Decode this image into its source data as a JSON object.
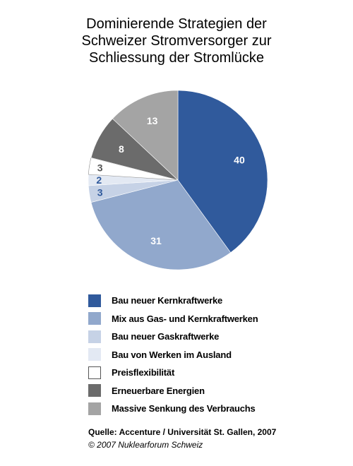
{
  "chart_data": {
    "type": "pie",
    "title_lines": [
      "Dominierende Strategien der",
      "Schweizer Stromversorger zur",
      "Schliessung der Stromlücke"
    ],
    "slices": [
      {
        "label": "Bau neuer Kernkraftwerke",
        "value": 40,
        "color": "#305a9c",
        "label_color": "#ffffff"
      },
      {
        "label": "Mix aus Gas- und Kernkraftwerken",
        "value": 31,
        "color": "#91a8cc",
        "label_color": "#ffffff"
      },
      {
        "label": "Bau neuer Gaskraftwerke",
        "value": 3,
        "color": "#c6d2e6",
        "label_color": "#305a9c"
      },
      {
        "label": "Bau von Werken im Ausland",
        "value": 2,
        "color": "#e3e9f3",
        "label_color": "#305a9c"
      },
      {
        "label": "Preisflexibilität",
        "value": 3,
        "color": "#ffffff",
        "label_color": "#555555"
      },
      {
        "label": "Erneuerbare Energien",
        "value": 8,
        "color": "#6b6b6b",
        "label_color": "#ffffff"
      },
      {
        "label": "Massive Senkung des Verbrauchs",
        "value": 13,
        "color": "#a4a4a4",
        "label_color": "#ffffff"
      }
    ]
  },
  "source": "Quelle: Accenture / Universität St. Gallen, 2007",
  "copyright": "© 2007 Nuklearforum Schweiz"
}
